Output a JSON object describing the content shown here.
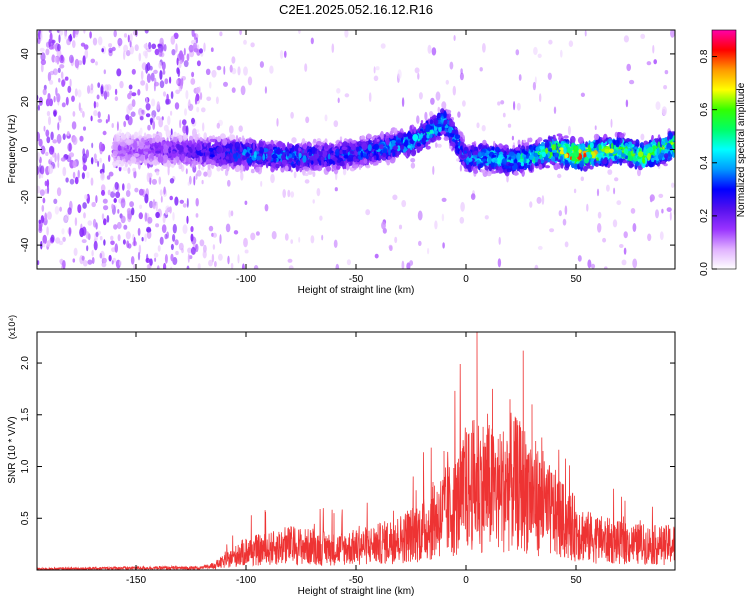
{
  "figure": {
    "title": "C2E1.2025.052.16.12.R16"
  },
  "chart_data": [
    {
      "type": "heatmap",
      "title": "",
      "xlabel": "Height of straight line (km)",
      "ylabel": "Frequency (Hz)",
      "xlim": [
        -195,
        95
      ],
      "ylim": [
        -50,
        50
      ],
      "xticks": [
        -150,
        -100,
        -50,
        0,
        50
      ],
      "yticks": [
        -40,
        -20,
        0,
        20,
        40
      ],
      "colorbar": {
        "label": "Normalized spectral amplitude",
        "range": [
          0,
          0.9
        ],
        "ticks": [
          0.0,
          0.2,
          0.4,
          0.6,
          0.8
        ],
        "colors": [
          "#ffffff",
          "#e0b0ff",
          "#9933ff",
          "#5511ee",
          "#0000ff",
          "#0099ff",
          "#00ffff",
          "#00ff66",
          "#33ff00",
          "#ffff00",
          "#ff9900",
          "#ff0000",
          "#ff00aa"
        ]
      },
      "ridge": {
        "x": [
          -195,
          -150,
          -120,
          -100,
          -80,
          -60,
          -40,
          -25,
          -15,
          -10,
          -5,
          0,
          10,
          20,
          30,
          40,
          50,
          60,
          70,
          80,
          95
        ],
        "freq": [
          0,
          0,
          -1,
          -2,
          -3,
          -3,
          0,
          3,
          8,
          12,
          5,
          -4,
          -3,
          -5,
          -3,
          0,
          -3,
          -1,
          0,
          -3,
          2
        ],
        "peak_amplitude": [
          0.05,
          0.15,
          0.25,
          0.35,
          0.35,
          0.3,
          0.35,
          0.4,
          0.45,
          0.4,
          0.35,
          0.35,
          0.45,
          0.4,
          0.5,
          0.55,
          0.75,
          0.6,
          0.55,
          0.6,
          0.55
        ]
      }
    },
    {
      "type": "line",
      "title": "",
      "xlabel": "Height of straight line (km)",
      "ylabel": "SNR (10 * V/V)",
      "y_multiplier": "(x10⁴)",
      "xlim": [
        -195,
        95
      ],
      "ylim": [
        0,
        2.3
      ],
      "xticks": [
        -150,
        -100,
        -50,
        0,
        50
      ],
      "yticks": [
        0.5,
        1.0,
        1.5,
        2.0
      ],
      "ytick_labels": [
        "0.5",
        "1.0",
        "1.5",
        "2.0"
      ],
      "line_color": "#ee3333",
      "series": [
        {
          "x": [
            -195,
            -150,
            -120,
            -115,
            -110,
            -100,
            -90,
            -80,
            -70,
            -60,
            -50,
            -40,
            -30,
            -20,
            -15,
            -10,
            -5,
            0,
            5,
            10,
            15,
            20,
            25,
            30,
            35,
            40,
            45,
            50,
            55,
            60,
            65,
            70,
            75,
            80,
            85,
            90,
            95
          ],
          "y": [
            0.01,
            0.02,
            0.02,
            0.04,
            0.08,
            0.18,
            0.2,
            0.24,
            0.22,
            0.2,
            0.22,
            0.25,
            0.3,
            0.38,
            0.45,
            0.55,
            0.6,
            0.75,
            0.85,
            0.8,
            0.75,
            0.85,
            0.8,
            0.75,
            0.6,
            0.55,
            0.45,
            0.4,
            0.32,
            0.3,
            0.28,
            0.26,
            0.25,
            0.25,
            0.24,
            0.24,
            0.25
          ],
          "peaks": [
            {
              "x": -60,
              "y": 0.55
            },
            {
              "x": -15,
              "y": 0.85
            },
            {
              "x": -10,
              "y": 1.15
            },
            {
              "x": -5,
              "y": 1.42
            },
            {
              "x": 5,
              "y": 2.3
            },
            {
              "x": 12,
              "y": 1.75
            },
            {
              "x": 20,
              "y": 1.65
            },
            {
              "x": 26,
              "y": 2.12
            },
            {
              "x": 30,
              "y": 1.6
            },
            {
              "x": 35,
              "y": 1.15
            }
          ]
        }
      ]
    }
  ]
}
